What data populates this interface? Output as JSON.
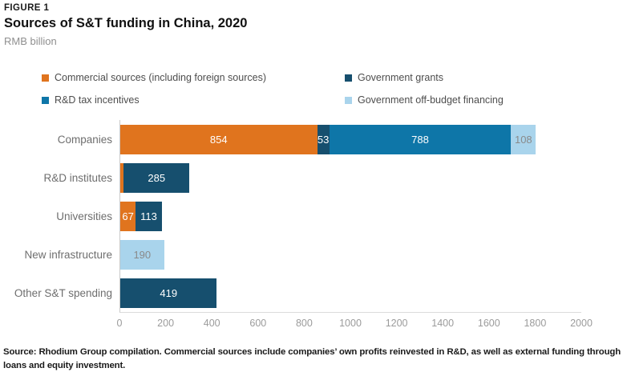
{
  "figure": {
    "kicker": "FIGURE 1",
    "title": "Sources of S&T funding in China, 2020",
    "subtitle": "RMB billion",
    "source_note": "Source: Rhodium Group compilation. Commercial sources include companies’ own profits reinvested in R&D, as well as external funding through loans and equity investment."
  },
  "colors": {
    "commercial": "#E0741E",
    "government_grants": "#164F6E",
    "rd_tax_incentives": "#0E76A8",
    "off_budget": "#A9D4EC",
    "axis_line": "#C9C9C9",
    "axis_text": "#9B9B9B",
    "category_text": "#6E6E6E",
    "label_on_dark": "#FFFFFF",
    "label_on_light": "#8A8A8A"
  },
  "legend": [
    {
      "label": "Commercial sources (including foreign sources)",
      "color_key": "commercial"
    },
    {
      "label": "Government grants",
      "color_key": "government_grants"
    },
    {
      "label": "R&D tax incentives",
      "color_key": "rd_tax_incentives"
    },
    {
      "label": "Government off-budget financing",
      "color_key": "off_budget"
    }
  ],
  "chart_data": {
    "type": "bar",
    "orientation": "horizontal",
    "stacked": true,
    "title": "Sources of S&T funding in China, 2020",
    "xlabel": "RMB billion",
    "ylabel": "",
    "xlim": [
      0,
      2000
    ],
    "x_ticks": [
      0,
      200,
      400,
      600,
      800,
      1000,
      1200,
      1400,
      1600,
      1800,
      2000
    ],
    "grid": false,
    "legend_position": "top",
    "categories": [
      "Companies",
      "R&D institutes",
      "Universities",
      "New infrastructure",
      "Other S&T spending"
    ],
    "series": [
      {
        "name": "Commercial sources (including foreign sources)",
        "color_key": "commercial",
        "label_color_key": "label_on_dark",
        "values": [
          854,
          15,
          67,
          0,
          0
        ],
        "labels": [
          "854",
          "",
          "67",
          "",
          ""
        ]
      },
      {
        "name": "Government grants",
        "color_key": "government_grants",
        "label_color_key": "label_on_dark",
        "values": [
          53,
          285,
          113,
          0,
          419
        ],
        "labels": [
          "53",
          "285",
          "113",
          "",
          "419"
        ]
      },
      {
        "name": "R&D tax incentives",
        "color_key": "rd_tax_incentives",
        "label_color_key": "label_on_dark",
        "values": [
          788,
          0,
          0,
          0,
          0
        ],
        "labels": [
          "788",
          "",
          "",
          "",
          ""
        ]
      },
      {
        "name": "Government off-budget financing",
        "color_key": "off_budget",
        "label_color_key": "label_on_light",
        "values": [
          108,
          0,
          0,
          190,
          0
        ],
        "labels": [
          "108",
          "",
          "",
          "190",
          ""
        ]
      }
    ]
  }
}
